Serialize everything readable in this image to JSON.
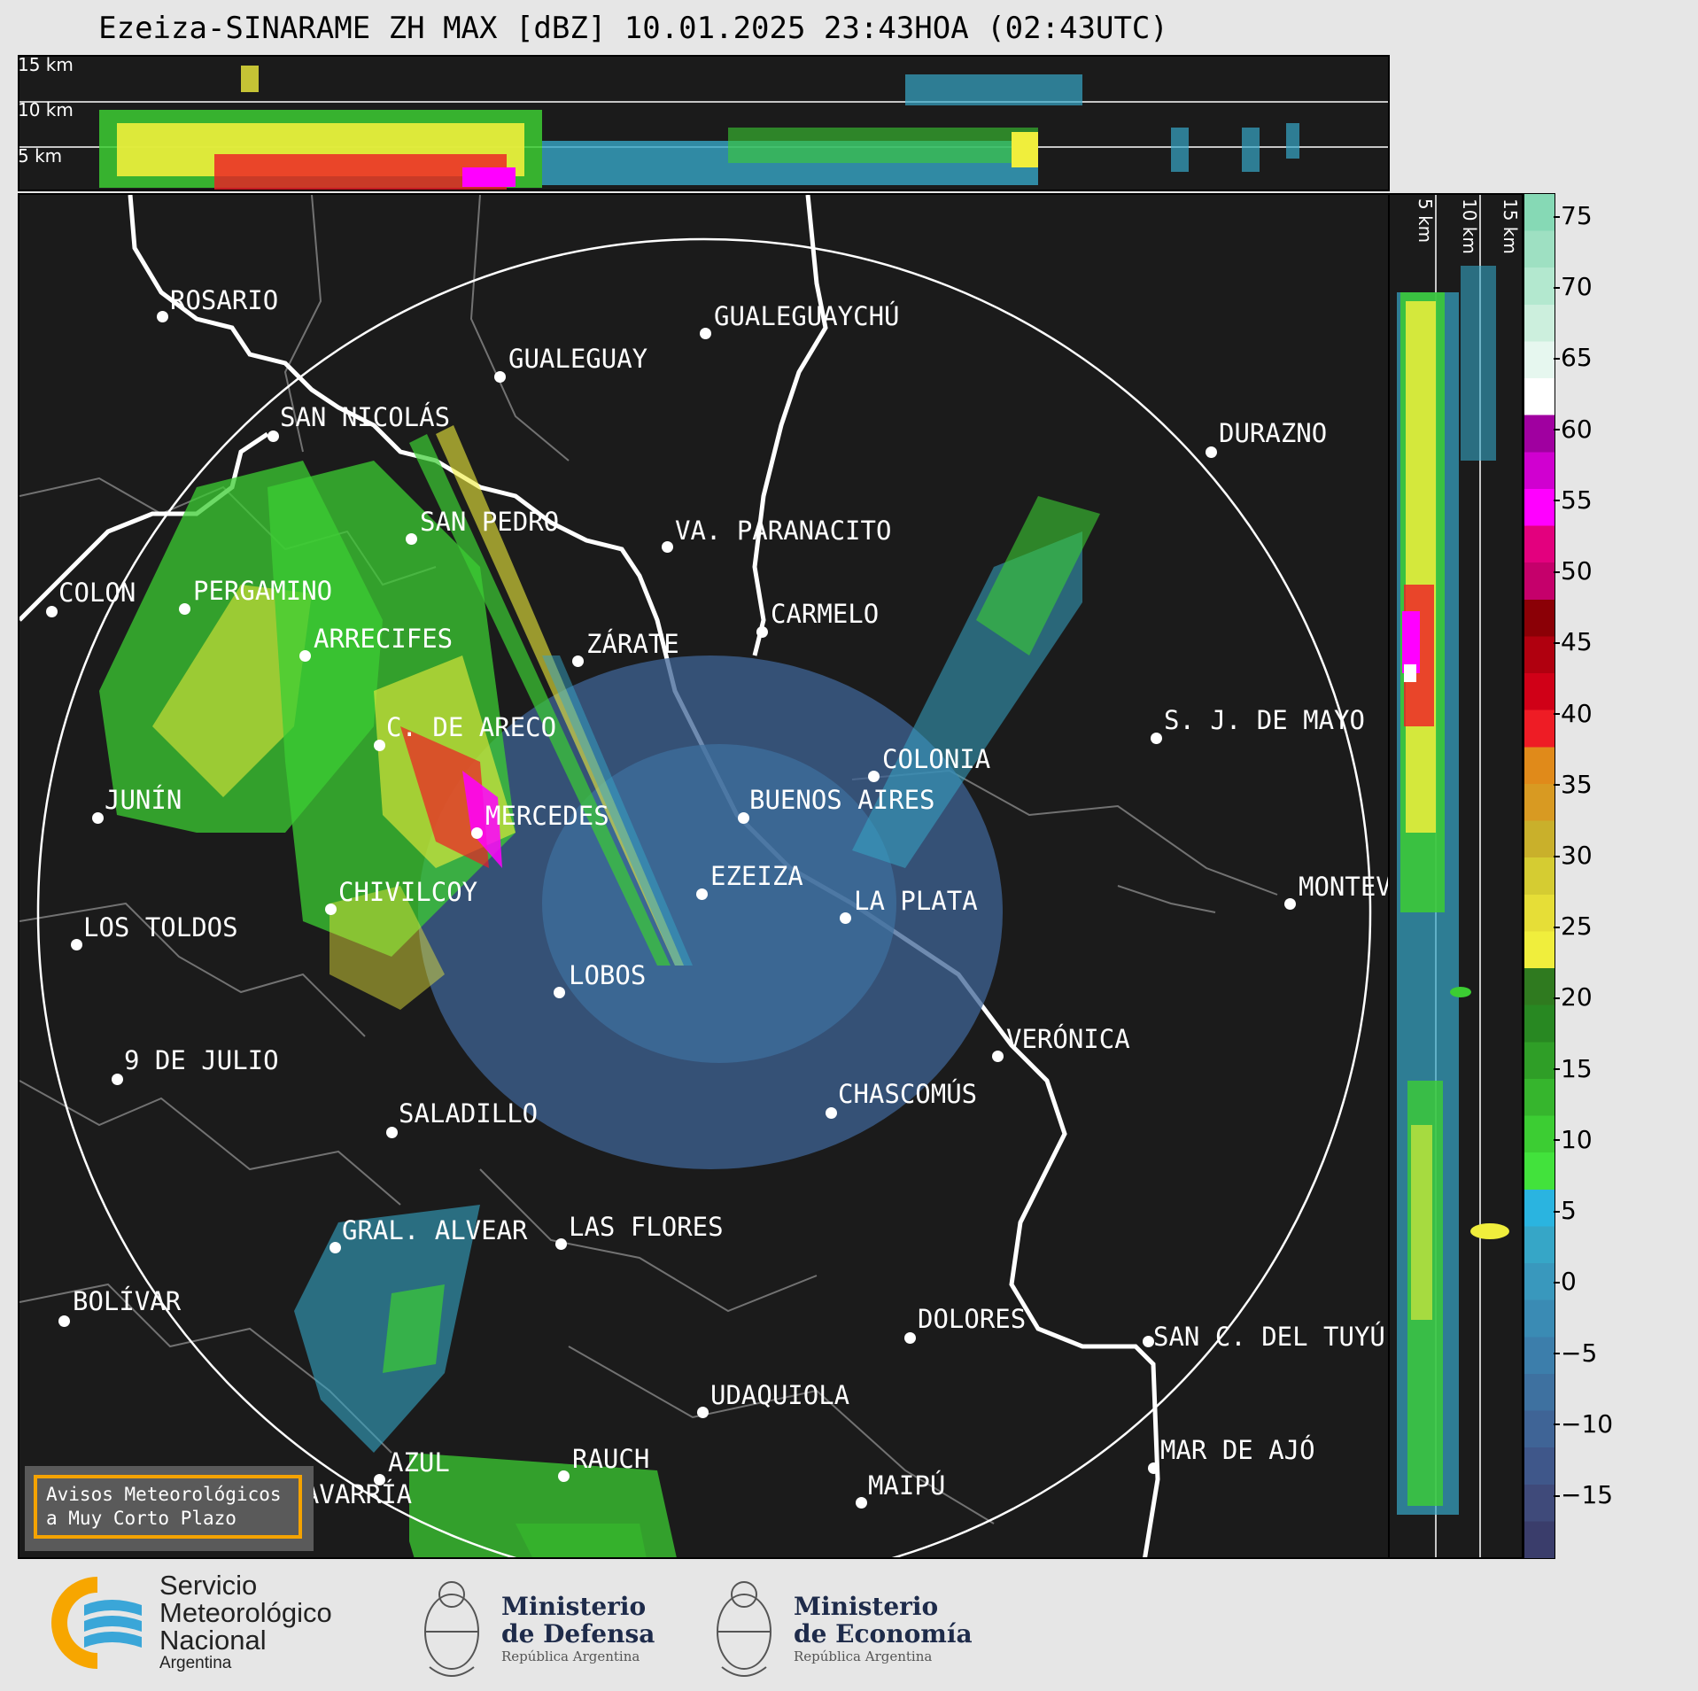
{
  "title": "Ezeiza-SINARAME ZH MAX [dBZ] 10.01.2025 23:43HOA (02:43UTC)",
  "top_panel": {
    "height_labels": [
      "15 km",
      "10 km",
      "5 km"
    ]
  },
  "side_panel": {
    "height_labels": [
      "5 km",
      "10 km",
      "15 km"
    ]
  },
  "cities": [
    {
      "name": "ROSARIO"
    },
    {
      "name": "GUALEGUAYCHÚ"
    },
    {
      "name": "GUALEGUAY"
    },
    {
      "name": "SAN NICOLÁS"
    },
    {
      "name": "DURAZNO"
    },
    {
      "name": "SAN PEDRO"
    },
    {
      "name": "VA. PARANACITO"
    },
    {
      "name": "COLON"
    },
    {
      "name": "PERGAMINO"
    },
    {
      "name": "CARMELO"
    },
    {
      "name": "ARRECIFES"
    },
    {
      "name": "ZÁRATE"
    },
    {
      "name": "S. J. DE MAYO"
    },
    {
      "name": "C. DE ARECO"
    },
    {
      "name": "COLONIA"
    },
    {
      "name": "JUNÍN"
    },
    {
      "name": "BUENOS AIRES"
    },
    {
      "name": "MERCEDES"
    },
    {
      "name": "EZEIZA"
    },
    {
      "name": "MONTEV"
    },
    {
      "name": "CHIVILCOY"
    },
    {
      "name": "LA PLATA"
    },
    {
      "name": "LOS TOLDOS"
    },
    {
      "name": "LOBOS"
    },
    {
      "name": "VERÓNICA"
    },
    {
      "name": "9 DE JULIO"
    },
    {
      "name": "CHASCOMÚS"
    },
    {
      "name": "SALADILLO"
    },
    {
      "name": "GRAL. ALVEAR"
    },
    {
      "name": "LAS FLORES"
    },
    {
      "name": "BOLÍVAR"
    },
    {
      "name": "DOLORES"
    },
    {
      "name": "SAN C. DEL TUYÚ"
    },
    {
      "name": "UDAQUIOLA"
    },
    {
      "name": "MAR DE AJÓ"
    },
    {
      "name": "RAUCH"
    },
    {
      "name": "AZUL"
    },
    {
      "name": "OLAVARRÍA"
    },
    {
      "name": "MAIPÚ"
    }
  ],
  "colorbar": {
    "unit": "dBZ",
    "ticks": [
      "75",
      "70",
      "65",
      "60",
      "55",
      "50",
      "45",
      "40",
      "35",
      "30",
      "25",
      "20",
      "15",
      "10",
      "5",
      "0",
      "−5",
      "−10",
      "−15"
    ],
    "colors": [
      "#3a3d6b",
      "#3f4a7a",
      "#3f578a",
      "#3f6496",
      "#3e71a0",
      "#3c7eab",
      "#3a8bb4",
      "#3998bd",
      "#36a6c7",
      "#2ab4e0",
      "#42e23c",
      "#3ccd33",
      "#36b52d",
      "#2f9e27",
      "#288822",
      "#2f7a1f",
      "#f0ee3c",
      "#e6de37",
      "#d5cc32",
      "#c9b02b",
      "#d89a22",
      "#e08a1a",
      "#ee1c25",
      "#d00017",
      "#b0000f",
      "#8b0006",
      "#c5006b",
      "#e3007e",
      "#ff00ff",
      "#d000d0",
      "#a000a0",
      "#ffffff",
      "#e6f7ef",
      "#ccefdd",
      "#b3e8cf",
      "#9ee0c2",
      "#86d9b5"
    ]
  },
  "avisos": {
    "line1": "Avisos Meteorológicos",
    "line2": "a Muy Corto Plazo"
  },
  "logos": {
    "smn": {
      "line1": "Servicio",
      "line2": "Meteorológico",
      "line3": "Nacional",
      "line4": "Argentina"
    },
    "defensa": {
      "line1": "Ministerio",
      "line2": "de Defensa",
      "line3": "República Argentina"
    },
    "economia": {
      "line1": "Ministerio",
      "line2": "de Economía",
      "line3": "República Argentina"
    }
  }
}
